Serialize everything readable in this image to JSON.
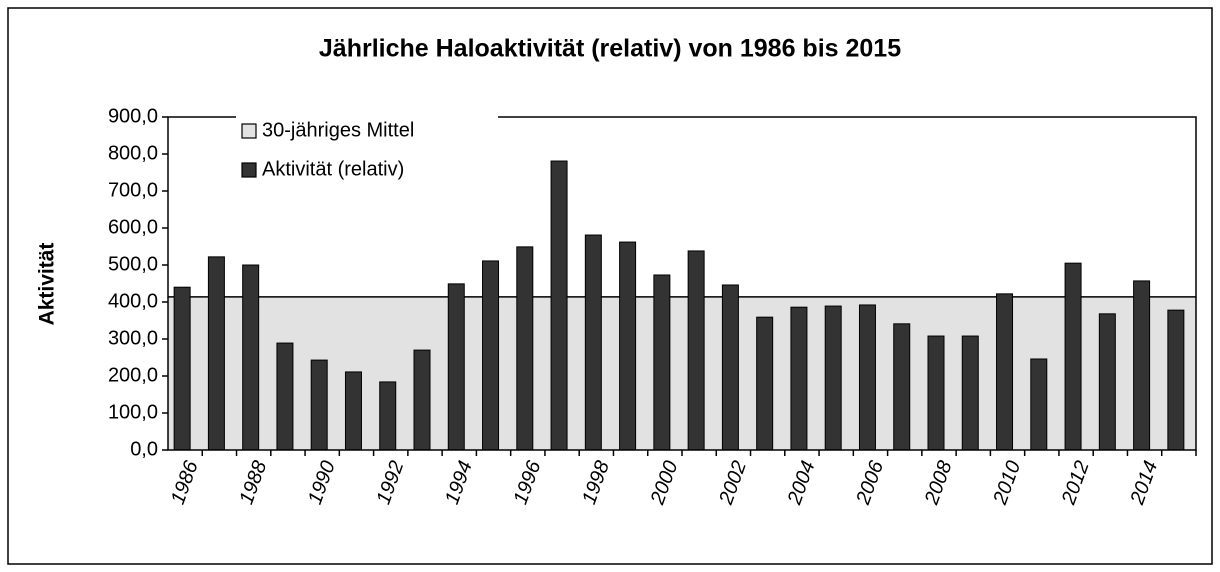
{
  "chart_data": {
    "type": "bar",
    "title": "Jährliche Haloaktivität (relativ) von 1986 bis 2015",
    "y_label": "Aktivität",
    "categories": [
      "1986",
      null,
      "1988",
      null,
      "1990",
      null,
      "1992",
      null,
      "1994",
      null,
      "1996",
      null,
      "1998",
      null,
      "2000",
      null,
      "2002",
      null,
      "2004",
      null,
      "2006",
      null,
      "2008",
      null,
      "2010",
      null,
      "2012",
      null,
      "2014",
      null
    ],
    "series": [
      {
        "name": "30-jähriges Mittel",
        "type": "area",
        "color": "#e2e2e2",
        "values": [
          414,
          414,
          414,
          414,
          414,
          414,
          414,
          414,
          414,
          414,
          414,
          414,
          414,
          414,
          414,
          414,
          414,
          414,
          414,
          414,
          414,
          414,
          414,
          414,
          414,
          414,
          414,
          414,
          414,
          414
        ]
      },
      {
        "name": "Aktivität (relativ)",
        "type": "bar",
        "color": "#333333",
        "values": [
          440,
          522,
          500,
          289,
          243,
          211,
          184,
          270,
          449,
          511,
          549,
          781,
          581,
          562,
          473,
          538,
          446,
          359,
          386,
          389,
          392,
          341,
          308,
          308,
          422,
          246,
          505,
          368,
          457,
          378
        ]
      }
    ],
    "ylim": [
      0,
      900
    ],
    "yticks": [
      {
        "value": 0,
        "label": "0,0"
      },
      {
        "value": 100,
        "label": "100,0"
      },
      {
        "value": 200,
        "label": "200,0"
      },
      {
        "value": 300,
        "label": "300,0"
      },
      {
        "value": 400,
        "label": "400,0"
      },
      {
        "value": 500,
        "label": "500,0"
      },
      {
        "value": 600,
        "label": "600,0"
      },
      {
        "value": 700,
        "label": "700,0"
      },
      {
        "value": 800,
        "label": "800,0"
      },
      {
        "value": 900,
        "label": "900,0"
      }
    ],
    "legend": "top-left"
  }
}
